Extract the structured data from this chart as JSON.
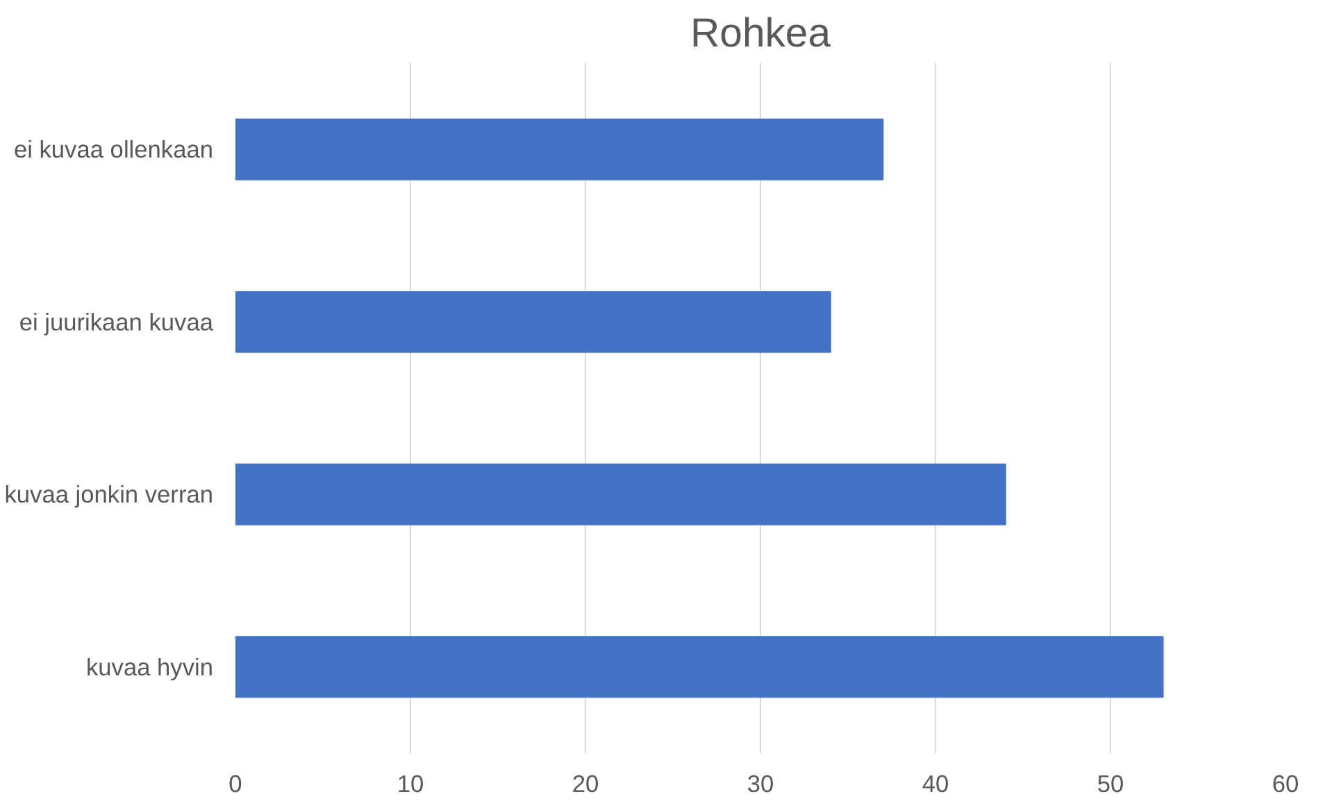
{
  "chart_data": {
    "type": "bar",
    "orientation": "horizontal",
    "title": "Rohkea",
    "categories": [
      "ei kuvaa ollenkaan",
      "ei juurikaan kuvaa",
      "kuvaa jonkin verran",
      "kuvaa hyvin"
    ],
    "values": [
      37,
      34,
      44,
      53
    ],
    "color": "#4472c4",
    "xlim": [
      0,
      60
    ],
    "xticks": [
      0,
      10,
      20,
      30,
      40,
      50,
      60
    ],
    "grid": "x"
  }
}
